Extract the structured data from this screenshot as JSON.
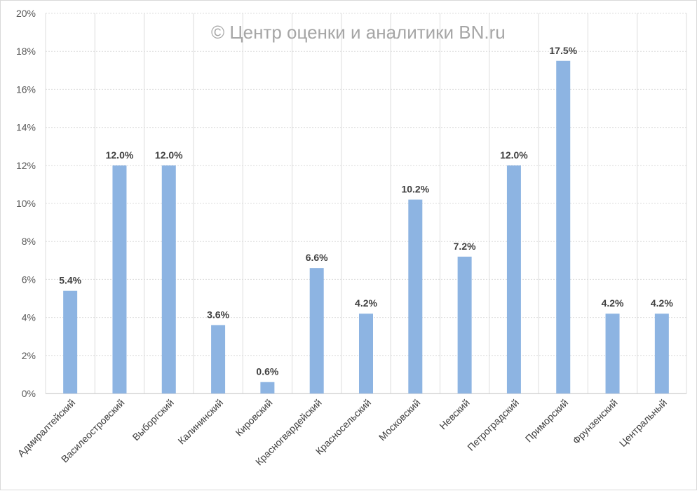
{
  "watermark": "© Центр оценки и аналитики BN.ru",
  "chart_data": {
    "type": "bar",
    "categories": [
      "Адмиралтейский",
      "Василеостровский",
      "Выборгский",
      "Калининский",
      "Кировский",
      "Красногвардейский",
      "Красносельский",
      "Московский",
      "Невский",
      "Петроградский",
      "Приморский",
      "Фрунзенский",
      "Центральный"
    ],
    "values": [
      5.4,
      12.0,
      12.0,
      3.6,
      0.6,
      6.6,
      4.2,
      10.2,
      7.2,
      12.0,
      17.5,
      4.2,
      4.2
    ],
    "value_labels": [
      "5.4%",
      "12.0%",
      "12.0%",
      "3.6%",
      "0.6%",
      "6.6%",
      "4.2%",
      "10.2%",
      "7.2%",
      "12.0%",
      "17.5%",
      "4.2%",
      "4.2%"
    ],
    "ylim": [
      0,
      20
    ],
    "yticks": [
      "0%",
      "2%",
      "4%",
      "6%",
      "8%",
      "10%",
      "12%",
      "14%",
      "16%",
      "18%",
      "20%"
    ],
    "grid": true,
    "bar_color": "#8db4e2"
  }
}
